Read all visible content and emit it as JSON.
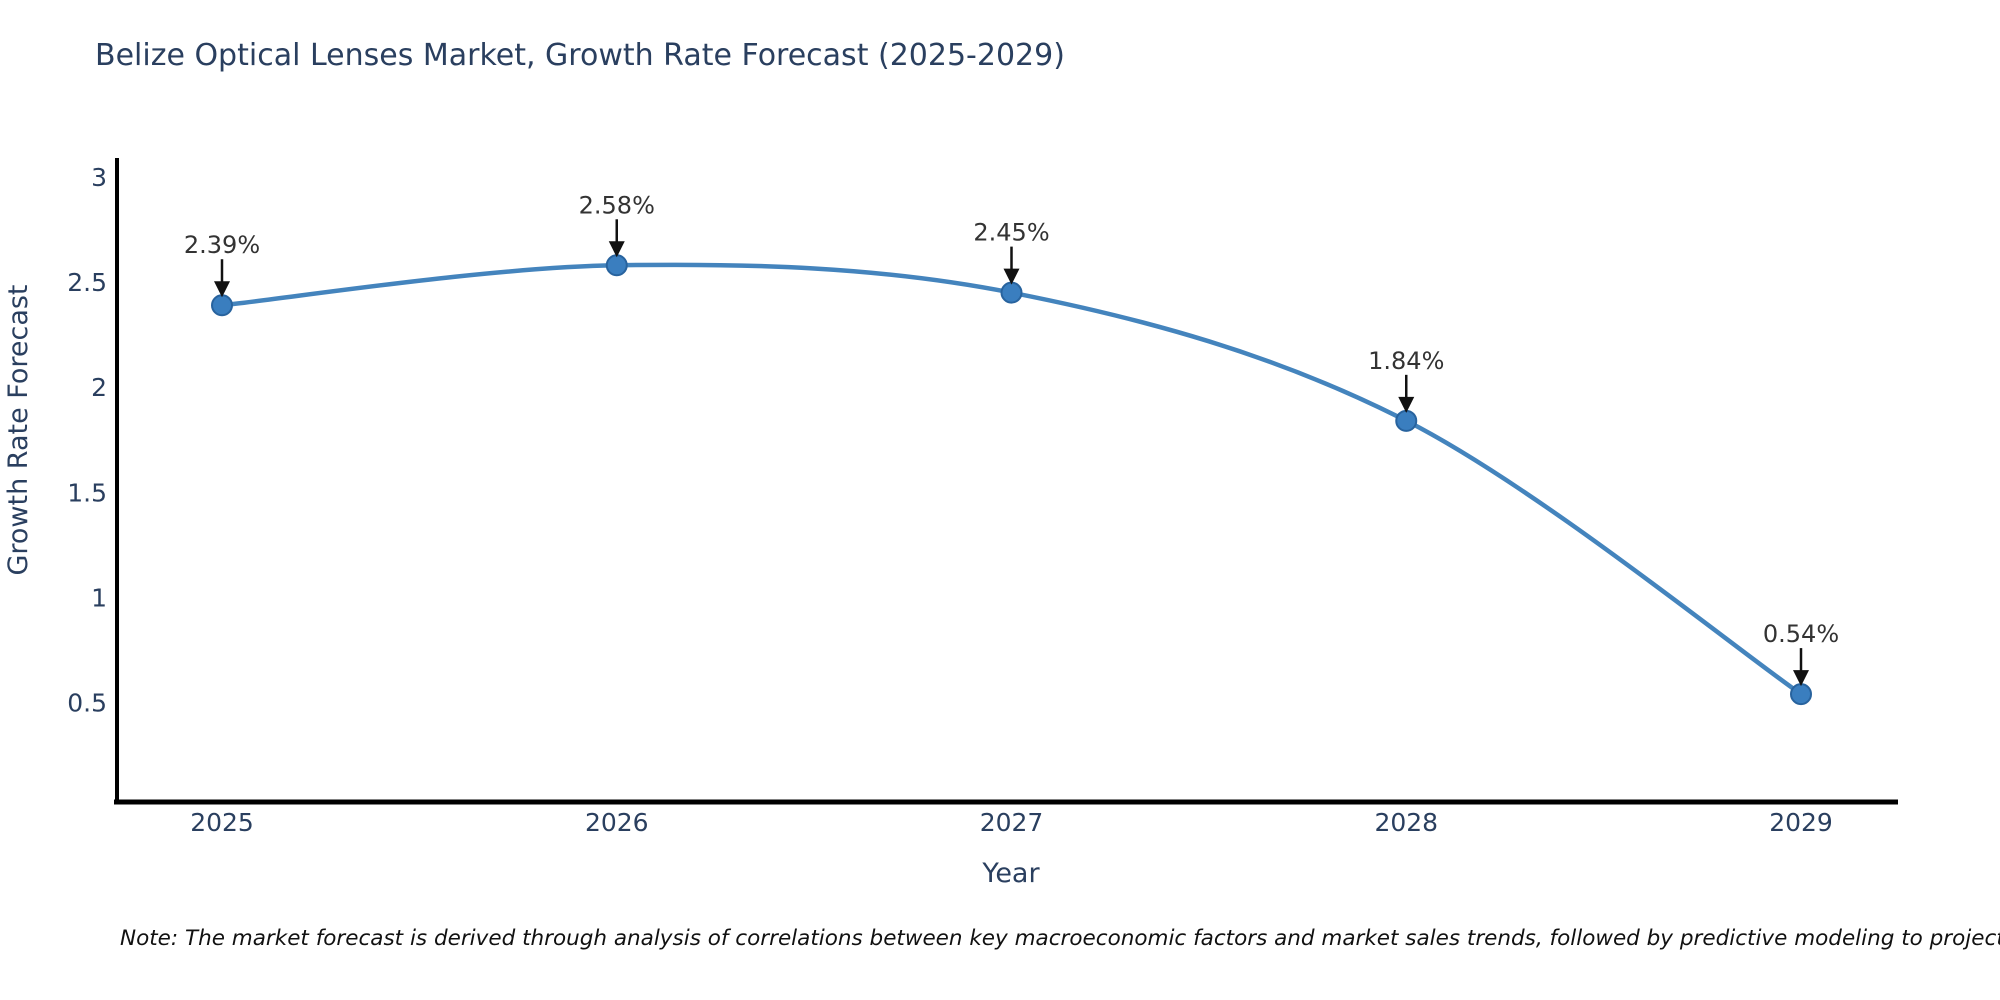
{
  "title": "Belize Optical Lenses Market, Growth Rate Forecast (2025-2029)",
  "note": "Note: The market forecast is derived through analysis of correlations between key macroeconomic factors and market sales trends, followed by predictive modeling to project future sales",
  "chart_data": {
    "type": "line",
    "x": [
      2025,
      2026,
      2027,
      2028,
      2029
    ],
    "y": [
      2.39,
      2.58,
      2.45,
      1.84,
      0.54
    ],
    "point_labels": [
      "2.39%",
      "2.58%",
      "2.45%",
      "1.84%",
      "0.54%"
    ],
    "xtick_labels": [
      "2025",
      "2026",
      "2027",
      "2028",
      "2029"
    ],
    "yticks": [
      0.5,
      1,
      1.5,
      2,
      2.5,
      3
    ],
    "ytick_labels": [
      "0.5",
      "1",
      "1.5",
      "2",
      "2.5",
      "3"
    ],
    "xlabel": "Year",
    "ylabel": "Growth Rate Forecast",
    "ylim": [
      0.03,
      3.08
    ],
    "grid": false,
    "legend": "none",
    "line_shape": "spline",
    "colors": {
      "line": "#4484bd",
      "marker_fill": "#3a7ebf",
      "marker_edge": "#28639e",
      "axis": "#000000",
      "label_text": "#2a3f5f",
      "annotation_text": "#333333",
      "arrow": "#111111",
      "background": "#ffffff"
    }
  }
}
